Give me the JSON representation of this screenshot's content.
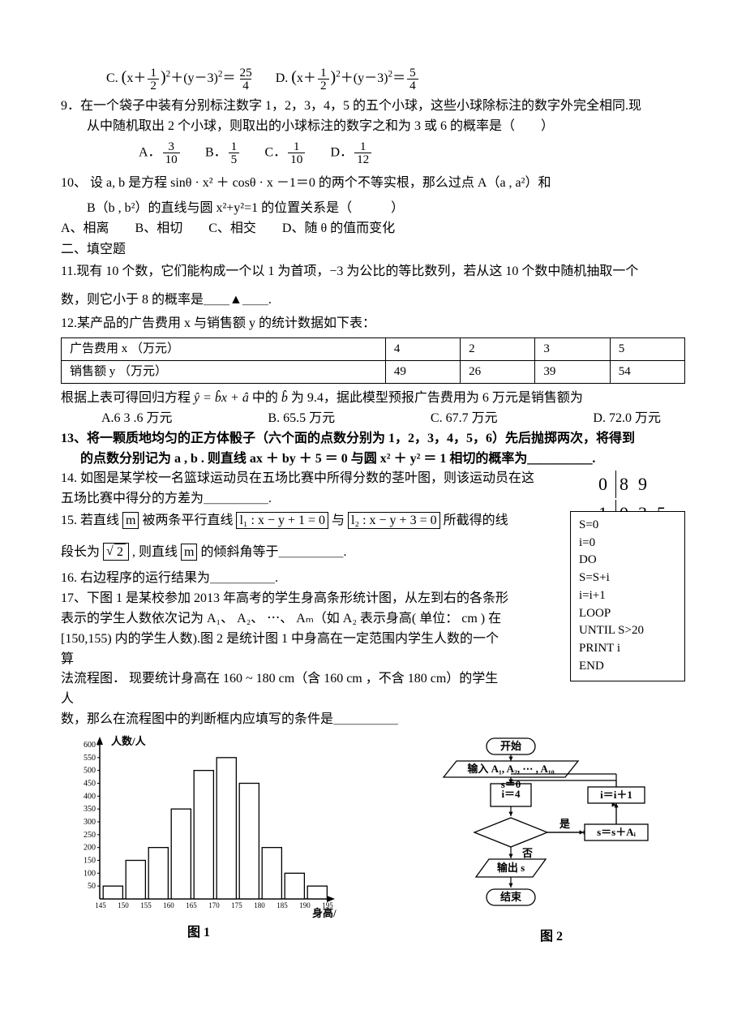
{
  "q8": {
    "c_label": "C.",
    "c_expr_text": "（x＋1/2）²＋（y－3）²＝ 25/4",
    "d_label": "D.",
    "d_expr_text": "（x＋1/2）²＋（y－3）²＝ 5/4"
  },
  "q9": {
    "num": "9．",
    "line1": "在一个袋子中装有分别标注数字 1，2，3，4，5 的五个小球，这些小球除标注的数字外完全相同.现",
    "line2": "从中随机取出 2 个小球，则取出的小球标注的数字之和为 3 或 6 的概率是（　　）",
    "opts": {
      "a_label": "A．",
      "a_num": "3",
      "a_den": "10",
      "b_label": "B．",
      "b_num": "1",
      "b_den": "5",
      "c_label": "C．",
      "c_num": "1",
      "c_den": "10",
      "d_label": "D．",
      "d_num": "1",
      "d_den": "12"
    }
  },
  "q10": {
    "line1": "10、 设 a, b 是方程 sinθ · x² ＋ cosθ · x －1＝0 的两个不等实根，那么过点 A（a , a²）和",
    "line2": "　　B（b , b²）的直线与圆 x²+y²=1 的位置关系是（　　　）",
    "opts": "A、相离　　B、相切　　C、相交　　D、随 θ 的值而变化"
  },
  "sec2": "二、填空题",
  "q11": {
    "line1": "11.现有 10 个数，它们能构成一个以 1 为首项，−3 为公比的等比数列，若从这 10 个数中随机抽取一个",
    "line2": "数，则它小于 8 的概率是＿＿▲＿＿."
  },
  "q12": {
    "line1": "12.某产品的广告费用 x 与销售额 y 的统计数据如下表：",
    "table": {
      "rows": [
        [
          "广告费用 x （万元）",
          "4",
          "2",
          "3",
          "5"
        ],
        [
          "销售额 y （万元）",
          "49",
          "26",
          "39",
          "54"
        ]
      ]
    },
    "line2_a": "根据上表可得回归方程 ",
    "line2_b": " 中的 ",
    "line2_c": " 为 9.4，据此模型预报广告费用为 6 万元是销售额为",
    "opts": {
      "a": "A.6 3 .6 万元",
      "b": "B. 65.5 万元",
      "c": "C. 67.7 万元",
      "d": "D. 72.0 万元"
    }
  },
  "q13": {
    "text_a": "13、将一颗质地均匀的正方体骰子（六个面的点数分别为 1，2，3，4，5，6）先后抛掷两次，将得到",
    "text_b": "的点数分别记为 a , b . 则直线 ax ＋ by ＋ 5 ＝ 0 与圆 x² ＋ y² ＝ 1 相切的概率为＿＿＿＿＿."
  },
  "q14": {
    "line1": "14. 如图是某学校一名篮球运动员在五场比赛中所得分数的茎叶图，则该运动员在这",
    "line2": "五场比赛中得分的方差为＿＿＿＿＿.",
    "stemleaf": {
      "rows": [
        {
          "stem": "0",
          "leaves": [
            "8",
            "9",
            ""
          ]
        },
        {
          "stem": "1",
          "leaves": [
            "0",
            "3",
            "5"
          ]
        }
      ]
    }
  },
  "q15": {
    "line1_a": "15.  若直线 ",
    "line1_m": "m",
    "line1_b": " 被两条平行直线 ",
    "line1_l1": "l₁ : x − y + 1 = 0",
    "line1_c": " 与 ",
    "line1_l2": "l₂ : x − y + 3 = 0",
    "line1_d": " 所截得的线",
    "line2_a": "段长为 ",
    "line2_sqrt": "2",
    "line2_b": " , 则直线 ",
    "line2_m": "m",
    "line2_c": " 的倾斜角等于＿＿＿＿＿."
  },
  "q16": "16. 右边程序的运行结果为＿＿＿＿＿.",
  "q17": {
    "l1": "17、下图 1 是某校参加 2013 年高考的学生身高条形统计图，从左到右的各条形",
    "l2": "表示的学生人数依次记为 A₁、 A₂、 ⋯、  Aₘ（如 A₂ 表示身高( 单位：  cm ) 在",
    "l3": "[150,155) 内的学生人数).图 2 是统计图 1 中身高在一定范围内学生人数的一个算",
    "l4": "法流程图． 现要统计身高在 160 ~ 180 cm（含 160 cm ，不含 180 cm）的学生人",
    "l5": "数，那么在流程图中的判断框内应填写的条件是＿＿＿＿＿"
  },
  "program": {
    "lines": [
      "S=0",
      "i=0",
      "DO",
      "  S=S+i",
      "  i=i+1",
      "LOOP",
      "UNTIL S>20",
      "PRINT    i",
      "END"
    ]
  },
  "fig1": {
    "ylabel": "人数/人",
    "xlabel": "身高/cm",
    "yticks": [
      "50",
      "100",
      "150",
      "200",
      "250",
      "300",
      "350",
      "400",
      "450",
      "500",
      "550",
      "600"
    ],
    "xticks": [
      "145",
      "150",
      "155",
      "160",
      "165",
      "170",
      "175",
      "180",
      "185",
      "190",
      "195"
    ],
    "bars": [
      50,
      150,
      200,
      350,
      500,
      550,
      450,
      200,
      100,
      50
    ],
    "ylim": 600,
    "bar_color": "#ffffff",
    "bar_border": "#000000",
    "caption": "图 1"
  },
  "fig2": {
    "nodes": {
      "start": "开始",
      "input": "输入 A₁, A₂, ⋯ , A₁₀",
      "init": "s＝0\ni＝4",
      "yes": "是",
      "no": "否",
      "step": "s＝s＋Aᵢ",
      "inc": "i＝i＋1",
      "out": "输出 s",
      "end": "结束"
    },
    "caption": "图 2"
  }
}
